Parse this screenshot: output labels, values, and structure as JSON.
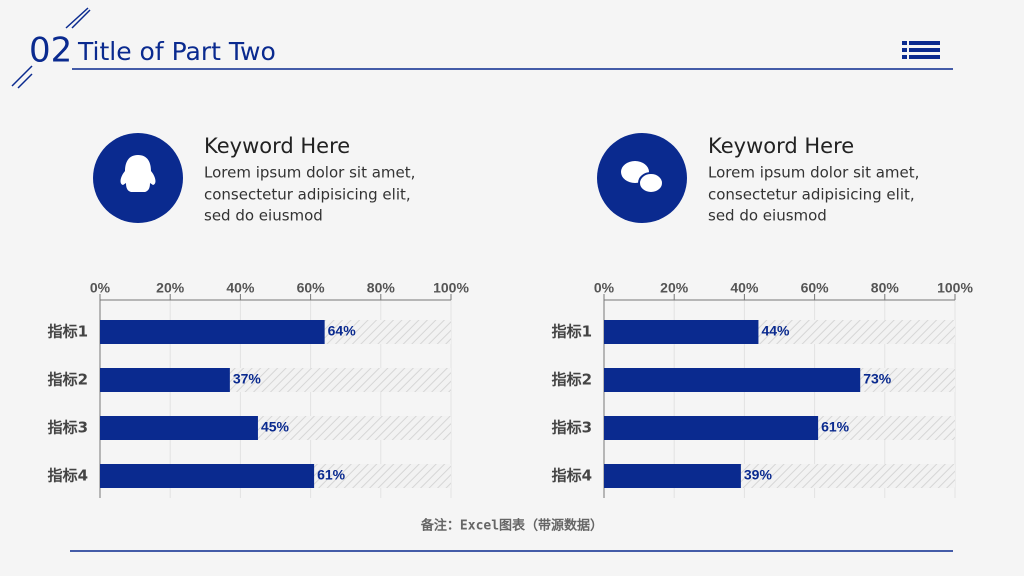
{
  "header": {
    "number": "02",
    "title": "Title of Part Two"
  },
  "keywords": [
    {
      "title": "Keyword Here",
      "lines": [
        "Lorem ipsum dolor sit amet,",
        "consectetur adipisicing elit,",
        "sed do eiusmod"
      ]
    },
    {
      "title": "Keyword Here",
      "lines": [
        "Lorem ipsum dolor sit amet,",
        "consectetur adipisicing elit,",
        "sed do eiusmod"
      ]
    }
  ],
  "chart_data": [
    {
      "type": "hbar",
      "categories": [
        "指标1",
        "指标2",
        "指标3",
        "指标4"
      ],
      "values": [
        64,
        37,
        45,
        61
      ],
      "value_labels": [
        "64%",
        "37%",
        "45%",
        "61%"
      ],
      "color": "#0a2a8f",
      "xlim": [
        0,
        100
      ],
      "xticks": [
        {
          "value": 0,
          "label": "0%"
        },
        {
          "value": 20,
          "label": "20%"
        },
        {
          "value": 40,
          "label": "40%"
        },
        {
          "value": 60,
          "label": "60%"
        },
        {
          "value": 80,
          "label": "80%"
        },
        {
          "value": 100,
          "label": "100%"
        }
      ],
      "grid": true
    },
    {
      "type": "hbar",
      "categories": [
        "指标1",
        "指标2",
        "指标3",
        "指标4"
      ],
      "values": [
        44,
        73,
        61,
        39
      ],
      "value_labels": [
        "44%",
        "73%",
        "61%",
        "39%"
      ],
      "color": "#0a2a8f",
      "xlim": [
        0,
        100
      ],
      "xticks": [
        {
          "value": 0,
          "label": "0%"
        },
        {
          "value": 20,
          "label": "20%"
        },
        {
          "value": 40,
          "label": "40%"
        },
        {
          "value": 60,
          "label": "60%"
        },
        {
          "value": 80,
          "label": "80%"
        },
        {
          "value": 100,
          "label": "100%"
        }
      ],
      "grid": true
    }
  ],
  "note": "备注：Excel图表（带源数据）"
}
